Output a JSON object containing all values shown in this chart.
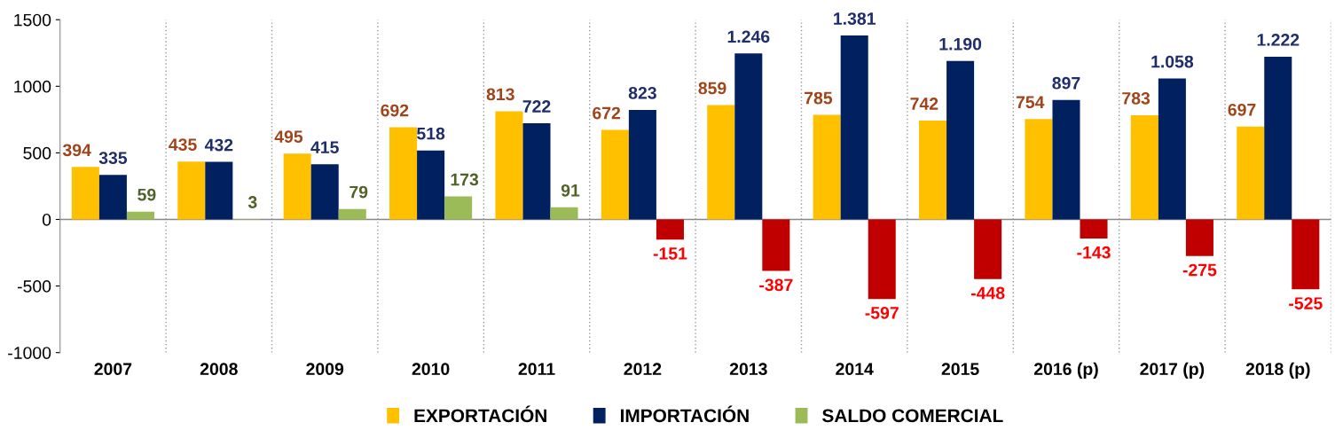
{
  "chart_data": {
    "type": "bar",
    "categories": [
      "2007",
      "2008",
      "2009",
      "2010",
      "2011",
      "2012",
      "2013",
      "2014",
      "2015",
      "2016 (p)",
      "2017 (p)",
      "2018 (p)"
    ],
    "series": [
      {
        "name": "EXPORTACIÓN",
        "color": "#ffc000",
        "values": [
          394,
          435,
          495,
          692,
          813,
          672,
          859,
          785,
          742,
          754,
          783,
          697
        ],
        "value_labels": [
          "394",
          "435",
          "495",
          "692",
          "813",
          "672",
          "859",
          "785",
          "742",
          "754",
          "783",
          "697"
        ]
      },
      {
        "name": "IMPORTACIÓN",
        "color": "#002060",
        "values": [
          335,
          432,
          415,
          518,
          722,
          823,
          1246,
          1381,
          1190,
          897,
          1058,
          1222
        ],
        "value_labels": [
          "335",
          "432",
          "415",
          "518",
          "722",
          "823",
          "1.246",
          "1.381",
          "1.190",
          "897",
          "1.058",
          "1.222"
        ]
      },
      {
        "name": "SALDO COMERCIAL",
        "color": "#9bbb59",
        "colors": [
          "#9bbb59",
          "#9bbb59",
          "#9bbb59",
          "#9bbb59",
          "#9bbb59",
          "#c00000",
          "#c00000",
          "#c00000",
          "#c00000",
          "#c00000",
          "#c00000",
          "#c00000"
        ],
        "values": [
          59,
          3,
          79,
          173,
          91,
          -151,
          -387,
          -597,
          -448,
          -143,
          -275,
          -525
        ],
        "value_labels": [
          "59",
          "3",
          "79",
          "173",
          "91",
          "-151",
          "-387",
          "-597",
          "-448",
          "-143",
          "-275",
          "-525"
        ]
      }
    ],
    "ylim": [
      -1000,
      1500
    ],
    "yticks": [
      -1000,
      -500,
      0,
      500,
      1000,
      1500
    ],
    "legend": "bottom",
    "grid": false
  }
}
